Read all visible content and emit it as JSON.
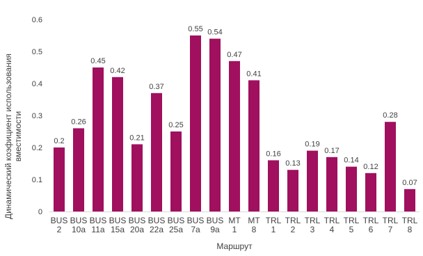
{
  "chart_data": {
    "type": "bar",
    "categories": [
      [
        "BUS",
        "2"
      ],
      [
        "BUS",
        "10a"
      ],
      [
        "BUS",
        "11a"
      ],
      [
        "BUS",
        "15a"
      ],
      [
        "BUS",
        "20a"
      ],
      [
        "BUS",
        "22a"
      ],
      [
        "BUS",
        "25a"
      ],
      [
        "BUS",
        "7a"
      ],
      [
        "BUS",
        "9a"
      ],
      [
        "MT",
        "1"
      ],
      [
        "MT",
        "8"
      ],
      [
        "TRL",
        "1"
      ],
      [
        "TRL",
        "2"
      ],
      [
        "TRL",
        "3"
      ],
      [
        "TRL",
        "4"
      ],
      [
        "TRL",
        "5"
      ],
      [
        "TRL",
        "6"
      ],
      [
        "TRL",
        "7"
      ],
      [
        "TRL",
        "8"
      ]
    ],
    "values": [
      0.2,
      0.26,
      0.45,
      0.42,
      0.21,
      0.37,
      0.25,
      0.55,
      0.54,
      0.47,
      0.41,
      0.16,
      0.13,
      0.19,
      0.17,
      0.14,
      0.12,
      0.28,
      0.07
    ],
    "data_labels": [
      "0.2",
      "0.26",
      "0.45",
      "0.42",
      "0.21",
      "0.37",
      "0.25",
      "0.55",
      "0.54",
      "0.47",
      "0.41",
      "0.16",
      "0.13",
      "0.19",
      "0.17",
      "0.14",
      "0.12",
      "0.28",
      "0.07"
    ],
    "title": "",
    "xlabel": "Маршрут",
    "ylabel": [
      "Динамический коэфициент использования",
      "вместимости"
    ],
    "ylim": [
      0,
      0.6
    ],
    "yticks": [
      "0",
      "0.1",
      "0.2",
      "0.3",
      "0.4",
      "0.5",
      "0.6"
    ],
    "grid": false,
    "legend": "none",
    "bar_color": "#a0105e"
  }
}
